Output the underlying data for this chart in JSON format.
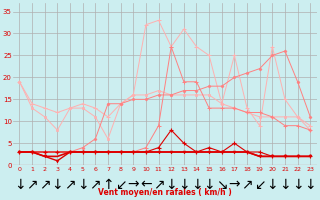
{
  "x": [
    0,
    1,
    2,
    3,
    4,
    5,
    6,
    7,
    8,
    9,
    10,
    11,
    12,
    13,
    14,
    15,
    16,
    17,
    18,
    19,
    20,
    21,
    22,
    23
  ],
  "series_top_light": [
    19,
    14,
    13,
    12,
    13,
    14,
    13,
    11,
    14,
    16,
    32,
    33,
    27,
    31,
    27,
    25,
    14,
    25,
    13,
    9,
    27,
    15,
    11,
    9
  ],
  "series_mid_light1": [
    19,
    13,
    11,
    8,
    13,
    13,
    11,
    6,
    14,
    16,
    16,
    17,
    16,
    16,
    16,
    16,
    14,
    13,
    12,
    11,
    11,
    11,
    11,
    8
  ],
  "series_mid_light2": [
    3,
    3,
    3,
    3,
    3,
    4,
    6,
    14,
    14,
    15,
    15,
    16,
    16,
    17,
    17,
    18,
    18,
    20,
    21,
    22,
    25,
    26,
    19,
    11
  ],
  "series_mid2": [
    3,
    3,
    3,
    3,
    3,
    3,
    3,
    3,
    3,
    3,
    4,
    9,
    27,
    19,
    19,
    13,
    13,
    13,
    12,
    12,
    11,
    9,
    9,
    8
  ],
  "series_dark1": [
    3,
    3,
    3,
    3,
    3,
    3,
    3,
    3,
    3,
    3,
    3,
    4,
    8,
    5,
    3,
    4,
    3,
    5,
    3,
    3,
    2,
    2,
    2,
    2
  ],
  "series_dark2": [
    3,
    3,
    2,
    1,
    3,
    3,
    3,
    3,
    3,
    3,
    3,
    3,
    3,
    3,
    3,
    3,
    3,
    3,
    3,
    2,
    2,
    2,
    2,
    2
  ],
  "series_darkline": [
    3,
    3,
    2,
    2,
    3,
    3,
    3,
    3,
    3,
    3,
    3,
    3,
    3,
    3,
    3,
    3,
    3,
    3,
    3,
    2,
    2,
    2,
    2,
    2
  ],
  "arrows": [
    "↓",
    "↗",
    "↗",
    "↓",
    "↗",
    "↓",
    "↗",
    "↑",
    "↙",
    "→",
    "←",
    "↗",
    "↓",
    "↓",
    "↓",
    "↓",
    "↘",
    "→",
    "↗",
    "↙",
    "↓",
    "↓",
    "↓",
    "↓"
  ],
  "bg_color": "#cceef0",
  "grid_color": "#b0b0b0",
  "line_color_dark": "#dd0000",
  "line_color_mid": "#ff8080",
  "line_color_light": "#ffb0b0",
  "xlabel": "Vent moyen/en rafales ( km/h )",
  "yticks": [
    0,
    5,
    10,
    15,
    20,
    25,
    30,
    35
  ],
  "ylim": [
    0,
    37
  ],
  "xlim": [
    -0.5,
    23.5
  ]
}
